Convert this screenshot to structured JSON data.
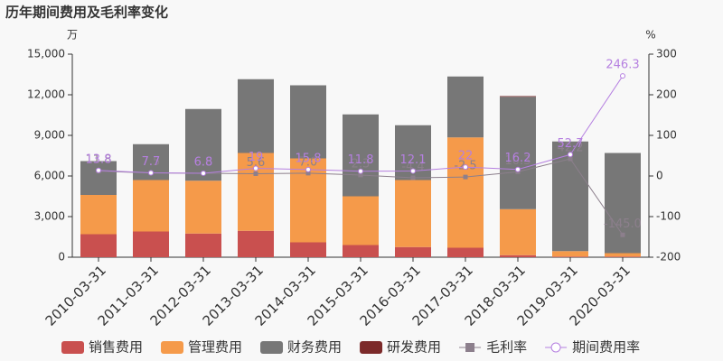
{
  "chart_data": {
    "type": "bar-line",
    "title": "历年期间费用及毛利率变化",
    "y_unit": "万",
    "y2_unit": "%",
    "categories": [
      "2010-03-31",
      "2011-03-31",
      "2012-03-31",
      "2013-03-31",
      "2014-03-31",
      "2015-03-31",
      "2016-03-31",
      "2017-03-31",
      "2018-03-31",
      "2019-03-31",
      "2020-03-31"
    ],
    "series": [
      {
        "name": "销售费用",
        "color": "#c9504f",
        "values": [
          1700,
          1900,
          1750,
          1950,
          1100,
          900,
          750,
          700,
          150,
          50,
          50
        ]
      },
      {
        "name": "管理费用",
        "color": "#f59a4a",
        "values": [
          2900,
          3800,
          3900,
          5750,
          6200,
          3600,
          4950,
          8150,
          3400,
          400,
          250
        ]
      },
      {
        "name": "财务费用",
        "color": "#777777",
        "values": [
          2500,
          2650,
          5300,
          5450,
          5400,
          6050,
          4050,
          4500,
          8300,
          8100,
          7400
        ]
      },
      {
        "name": "研发费用",
        "color": "#7c2a2a",
        "values": [
          0,
          0,
          0,
          0,
          0,
          0,
          0,
          0,
          50,
          0,
          0
        ]
      },
      {
        "name": "毛利率",
        "color": "#8c7f8c",
        "axis": "y2",
        "marker": "square",
        "values": [
          11.8,
          7.5,
          6.6,
          5.6,
          7.0,
          2.3,
          -4.4,
          -2.5,
          10.3,
          42.2,
          -145.0
        ],
        "value_labels": [
          "11.8",
          "7.5",
          "6.6",
          "5.6",
          "7.0",
          "2.3",
          "-4.4",
          "-2.5",
          "10.3",
          "42.2",
          "-145.0"
        ]
      },
      {
        "name": "期间费用率",
        "color": "#b57fe0",
        "axis": "y2",
        "marker": "circle",
        "values": [
          13.8,
          7.7,
          6.8,
          19,
          15.8,
          11.8,
          12.1,
          22,
          16.2,
          52.7,
          246.3
        ]
      }
    ],
    "ylim": [
      0,
      15000
    ],
    "yticks": [
      0,
      {
        "value": 3000,
        "label": "3,000"
      },
      {
        "value": 6000,
        "label": "6,000"
      },
      {
        "value": 9000,
        "label": "9,000"
      },
      {
        "value": 12000,
        "label": "12,000"
      },
      {
        "value": 15000,
        "label": "15,000"
      }
    ],
    "y2lim": [
      -200,
      300
    ],
    "y2ticks": [
      -200,
      -100,
      0,
      100,
      200,
      300
    ],
    "grid": false,
    "legend": "bottom"
  }
}
